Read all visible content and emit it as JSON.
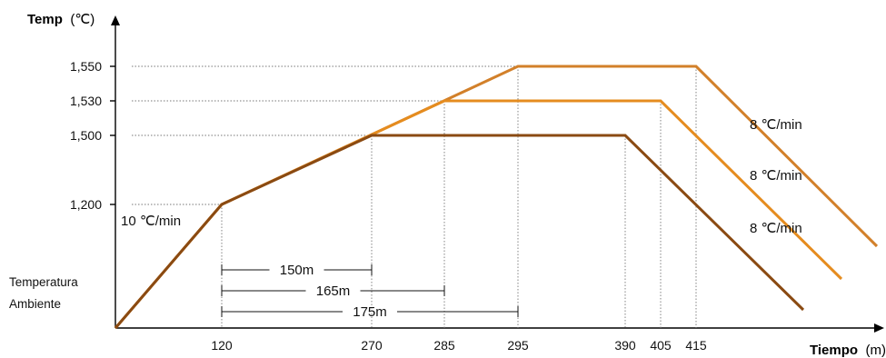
{
  "chart_data": {
    "type": "line",
    "y_title_bold": "Temp",
    "y_title_unit": "(℃)",
    "x_title_bold": "Tiempo",
    "x_title_unit": "(m)",
    "y_ticks": [
      {
        "value": 1200,
        "label": "1,200"
      },
      {
        "value": 1500,
        "label": "1,500"
      },
      {
        "value": 1530,
        "label": "1,530"
      },
      {
        "value": 1550,
        "label": "1,550"
      }
    ],
    "x_ticks": [
      {
        "value": 120,
        "label": "120"
      },
      {
        "value": 270,
        "label": "270"
      },
      {
        "value": 285,
        "label": "285"
      },
      {
        "value": 295,
        "label": "295"
      },
      {
        "value": 390,
        "label": "390"
      },
      {
        "value": 405,
        "label": "405"
      },
      {
        "value": 415,
        "label": "415"
      }
    ],
    "ambient_label_line1": "Temperatura",
    "ambient_label_line2": "Ambiente",
    "heating_rate_label": "10 ℃/min",
    "series": [
      {
        "color": "#d2802a",
        "points": [
          [
            0,
            "ambient"
          ],
          [
            120,
            1200
          ],
          [
            295,
            1550
          ],
          [
            415,
            1550
          ]
        ],
        "cooling_label": "8 ℃/min"
      },
      {
        "color": "#e58c1f",
        "points": [
          [
            0,
            "ambient"
          ],
          [
            120,
            1200
          ],
          [
            285,
            1530
          ],
          [
            405,
            1530
          ]
        ],
        "cooling_label": "8 ℃/min"
      },
      {
        "color": "#8a4a12",
        "points": [
          [
            0,
            "ambient"
          ],
          [
            120,
            1200
          ],
          [
            270,
            1500
          ],
          [
            390,
            1500
          ]
        ],
        "cooling_label": "8 ℃/min"
      }
    ],
    "durations": [
      {
        "from": 120,
        "to": 270,
        "label": "150m"
      },
      {
        "from": 120,
        "to": 285,
        "label": "165m"
      },
      {
        "from": 120,
        "to": 295,
        "label": "175m"
      }
    ]
  }
}
